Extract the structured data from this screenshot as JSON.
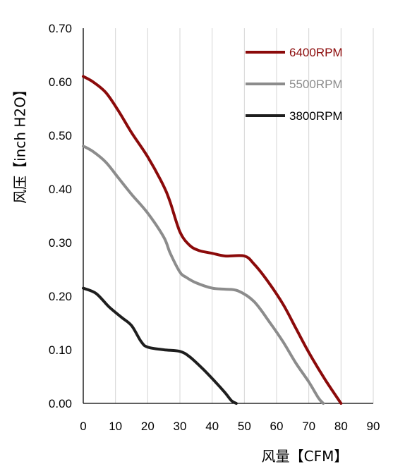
{
  "chart_data": {
    "type": "line",
    "title": "",
    "xlabel": "风量【CFM】",
    "ylabel": "风压【inch H2O】",
    "xlim": [
      0,
      90
    ],
    "ylim": [
      0,
      0.7
    ],
    "x_ticks": [
      "0",
      "10",
      "20",
      "30",
      "40",
      "50",
      "60",
      "70",
      "80",
      "90"
    ],
    "y_ticks": [
      "0.00",
      "0.10",
      "0.20",
      "0.30",
      "0.40",
      "0.50",
      "0.60",
      "0.70"
    ],
    "grid": "vertical",
    "legend_position": "top-right",
    "series": [
      {
        "name": "6400RPM",
        "color": "#8B0A0A",
        "points": [
          [
            0,
            0.61
          ],
          [
            3,
            0.6
          ],
          [
            7,
            0.58
          ],
          [
            11,
            0.545
          ],
          [
            15,
            0.505
          ],
          [
            20,
            0.46
          ],
          [
            25,
            0.405
          ],
          [
            27,
            0.375
          ],
          [
            30,
            0.32
          ],
          [
            33,
            0.295
          ],
          [
            36,
            0.285
          ],
          [
            40,
            0.28
          ],
          [
            44,
            0.275
          ],
          [
            50,
            0.275
          ],
          [
            53,
            0.26
          ],
          [
            57,
            0.23
          ],
          [
            62,
            0.185
          ],
          [
            66,
            0.14
          ],
          [
            70,
            0.095
          ],
          [
            75,
            0.045
          ],
          [
            80,
            0.0
          ]
        ]
      },
      {
        "name": "5500RPM",
        "color": "#8C8C8C",
        "points": [
          [
            0,
            0.48
          ],
          [
            3,
            0.47
          ],
          [
            7,
            0.45
          ],
          [
            11,
            0.42
          ],
          [
            15,
            0.39
          ],
          [
            20,
            0.355
          ],
          [
            25,
            0.31
          ],
          [
            27,
            0.28
          ],
          [
            30,
            0.245
          ],
          [
            32,
            0.235
          ],
          [
            35,
            0.225
          ],
          [
            40,
            0.215
          ],
          [
            44,
            0.213
          ],
          [
            48,
            0.21
          ],
          [
            53,
            0.19
          ],
          [
            58,
            0.15
          ],
          [
            62,
            0.115
          ],
          [
            66,
            0.075
          ],
          [
            70,
            0.04
          ],
          [
            73,
            0.01
          ],
          [
            74.5,
            0.0
          ]
        ]
      },
      {
        "name": "3800RPM",
        "color": "#1E1E1E",
        "points": [
          [
            0,
            0.215
          ],
          [
            4,
            0.205
          ],
          [
            8,
            0.18
          ],
          [
            12,
            0.16
          ],
          [
            15,
            0.145
          ],
          [
            18,
            0.115
          ],
          [
            20,
            0.105
          ],
          [
            25,
            0.1
          ],
          [
            30,
            0.097
          ],
          [
            33,
            0.087
          ],
          [
            37,
            0.065
          ],
          [
            41,
            0.04
          ],
          [
            44,
            0.02
          ],
          [
            46,
            0.005
          ],
          [
            47.5,
            0.0
          ]
        ]
      }
    ]
  }
}
